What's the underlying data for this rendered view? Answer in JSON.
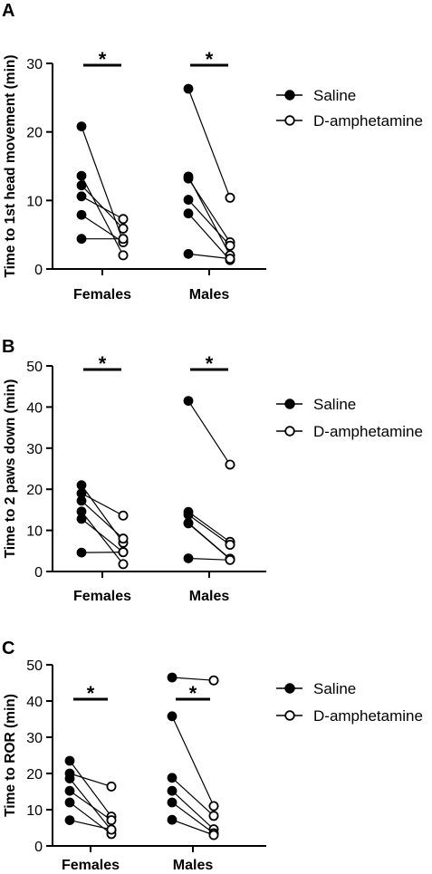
{
  "colors": {
    "ink": "#000000",
    "open_fill": "#ffffff"
  },
  "legend_entries": [
    "Saline",
    "D-amphetamine"
  ],
  "chart_data": [
    {
      "type": "scatter",
      "panel": "A",
      "ylabel": "Time to 1st head movement (min)",
      "ylim": [
        0,
        30
      ],
      "yticks": [
        "0",
        "10",
        "20",
        "30"
      ],
      "categories": [
        "Females",
        "Males"
      ],
      "grid": false,
      "legend": "right",
      "significance": [
        "*",
        "*"
      ],
      "series": [
        {
          "name": "Saline",
          "marker": "filled",
          "values": [
            [
              20.8,
              13.6,
              12.2,
              10.6,
              7.9,
              4.4
            ],
            [
              26.3,
              13.5,
              13.2,
              10.1,
              8.1,
              2.2
            ]
          ]
        },
        {
          "name": "D-amphetamine",
          "marker": "open",
          "values": [
            [
              4.0,
              2.0,
              5.9,
              7.3,
              3.9,
              4.4
            ],
            [
              10.4,
              2.0,
              3.9,
              3.4,
              1.3,
              1.5
            ]
          ]
        }
      ]
    },
    {
      "type": "scatter",
      "panel": "B",
      "ylabel": "Time to 2 paws down (min)",
      "ylim": [
        0,
        50
      ],
      "yticks": [
        "0",
        "10",
        "20",
        "30",
        "40",
        "50"
      ],
      "categories": [
        "Females",
        "Males"
      ],
      "grid": false,
      "legend": "right",
      "significance": [
        "*",
        "*"
      ],
      "series": [
        {
          "name": "Saline",
          "marker": "filled",
          "values": [
            [
              21.0,
              19.0,
              17.2,
              14.6,
              12.8,
              4.6
            ],
            [
              41.5,
              14.5,
              13.8,
              11.8,
              11.7,
              3.2
            ]
          ]
        },
        {
          "name": "D-amphetamine",
          "marker": "open",
          "values": [
            [
              7.0,
              13.6,
              8.0,
              1.8,
              4.7,
              4.7
            ],
            [
              26.0,
              7.2,
              6.5,
              3.1,
              3.0,
              2.8
            ]
          ]
        }
      ]
    },
    {
      "type": "scatter",
      "panel": "C",
      "ylabel": "Time to ROR (min)",
      "ylim": [
        0,
        50
      ],
      "yticks": [
        "0",
        "10",
        "20",
        "30",
        "40",
        "50"
      ],
      "categories": [
        "Females",
        "Males"
      ],
      "grid": false,
      "legend": "right",
      "significance": [
        "*",
        "*"
      ],
      "series": [
        {
          "name": "Saline",
          "marker": "filled",
          "values": [
            [
              23.5,
              20.0,
              18.6,
              15.2,
              12.0,
              7.1
            ],
            [
              46.5,
              35.8,
              18.8,
              15.2,
              12.0,
              7.2
            ]
          ]
        },
        {
          "name": "D-amphetamine",
          "marker": "open",
          "values": [
            [
              8.1,
              16.4,
              4.3,
              7.1,
              3.3,
              4.5
            ],
            [
              45.7,
              11.0,
              8.3,
              4.6,
              3.5,
              3.0
            ]
          ]
        }
      ]
    }
  ]
}
